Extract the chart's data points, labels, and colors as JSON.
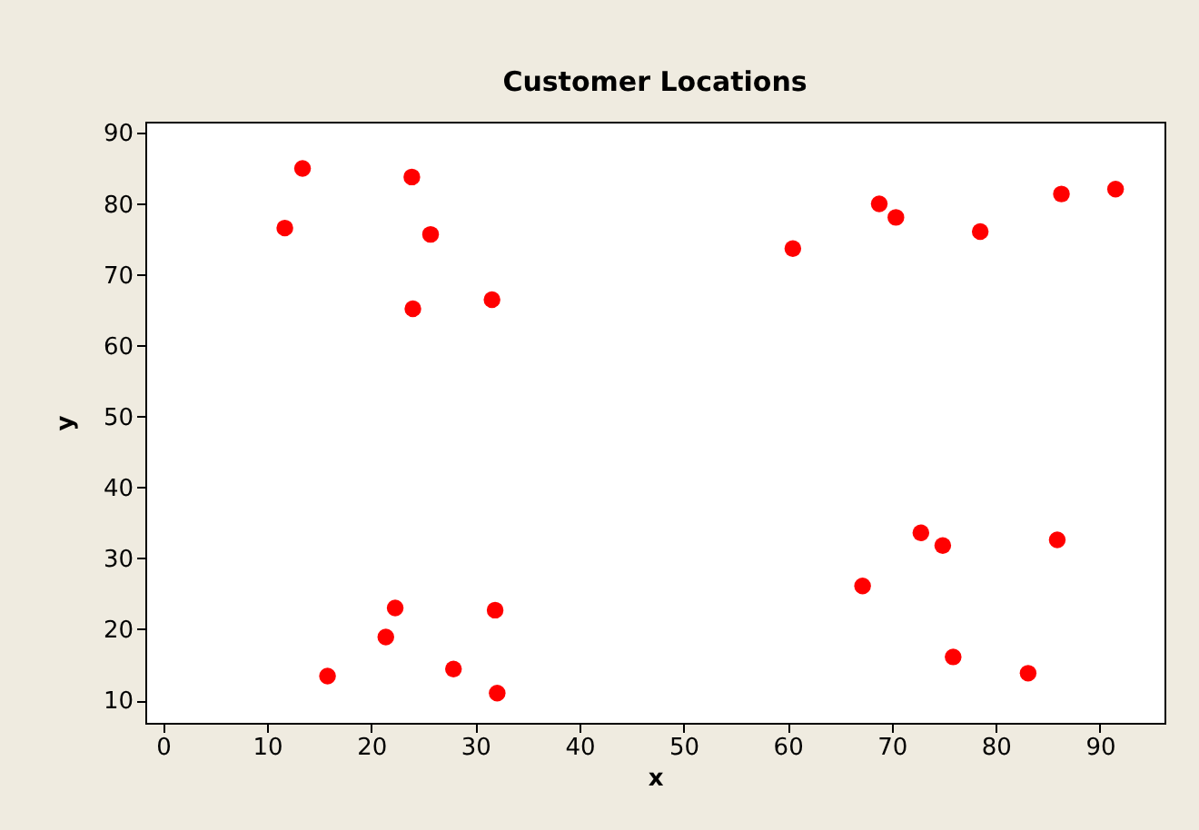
{
  "chart_data": {
    "type": "scatter",
    "title": "Customer Locations",
    "xlabel": "x",
    "ylabel": "y",
    "x": [
      11.7,
      13.4,
      23.9,
      25.7,
      24.0,
      31.6,
      22.3,
      21.4,
      15.8,
      27.9,
      31.9,
      32.1,
      60.5,
      68.8,
      70.4,
      78.5,
      86.3,
      91.5,
      72.8,
      74.9,
      85.9,
      67.2,
      75.9,
      83.1
    ],
    "series": [
      {
        "color": "#ff0000",
        "values": [
          76.6,
          85.0,
          83.8,
          75.7,
          65.2,
          66.5,
          23.0,
          18.9,
          13.4,
          14.4,
          22.7,
          11.0,
          73.7,
          80.0,
          78.1,
          76.1,
          81.4,
          82.1,
          33.6,
          31.8,
          32.6,
          26.1,
          16.1,
          13.8
        ]
      }
    ],
    "xlim": [
      -1.7,
      96.2
    ],
    "ylim": [
      6.8,
      91.6
    ],
    "xticks": [
      0,
      10,
      20,
      30,
      40,
      50,
      60,
      70,
      80,
      90
    ],
    "yticks": [
      10,
      20,
      30,
      40,
      50,
      60,
      70,
      80,
      90
    ],
    "marker": "circle",
    "grid": false,
    "legend": false
  }
}
